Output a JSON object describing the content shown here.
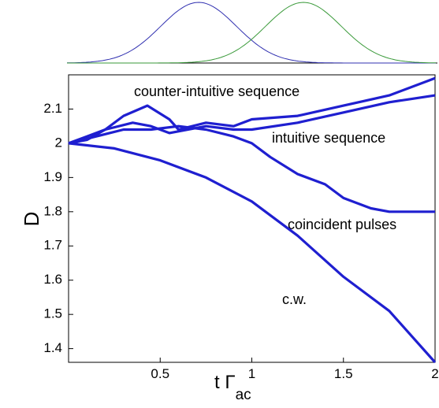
{
  "chart_data": {
    "type": "line",
    "ylabel": "D",
    "xlabel": {
      "main": "t Γ",
      "sub": "ac"
    },
    "annotations": [
      "counter-intuitive sequence",
      "intuitive sequence",
      "coincident pulses",
      "c.w."
    ],
    "xlim": [
      0,
      2
    ],
    "ylim": [
      1.36,
      2.2
    ],
    "xticks": [
      0.5,
      1,
      1.5,
      2
    ],
    "yticks": [
      1.4,
      1.5,
      1.6,
      1.7,
      1.8,
      1.9,
      2,
      2.1
    ],
    "grid": false,
    "color": "#1f1fd0",
    "series": [
      {
        "name": "counter-intuitive sequence",
        "x": [
          0,
          0.1,
          0.2,
          0.3,
          0.43,
          0.55,
          0.6,
          0.75,
          0.9,
          1.0,
          1.25,
          1.5,
          1.75,
          2.0
        ],
        "values": [
          2.0,
          2.01,
          2.04,
          2.08,
          2.11,
          2.07,
          2.04,
          2.06,
          2.05,
          2.07,
          2.08,
          2.11,
          2.14,
          2.19
        ]
      },
      {
        "name": "intuitive sequence",
        "x": [
          0,
          0.1,
          0.2,
          0.35,
          0.45,
          0.55,
          0.75,
          0.9,
          1.0,
          1.25,
          1.5,
          1.75,
          2.0
        ],
        "values": [
          2.0,
          2.02,
          2.04,
          2.06,
          2.05,
          2.03,
          2.05,
          2.04,
          2.04,
          2.06,
          2.09,
          2.12,
          2.14
        ]
      },
      {
        "name": "coincident pulses",
        "x": [
          0,
          0.15,
          0.3,
          0.45,
          0.6,
          0.75,
          0.9,
          1.0,
          1.1,
          1.25,
          1.4,
          1.5,
          1.65,
          1.75,
          2.0
        ],
        "values": [
          2.0,
          2.02,
          2.04,
          2.04,
          2.05,
          2.04,
          2.02,
          2.0,
          1.96,
          1.91,
          1.88,
          1.84,
          1.81,
          1.8,
          1.8
        ]
      },
      {
        "name": "c.w.",
        "x": [
          0,
          0.25,
          0.5,
          0.75,
          1.0,
          1.25,
          1.5,
          1.75,
          2.0
        ],
        "values": [
          2.0,
          1.985,
          1.95,
          1.9,
          1.83,
          1.73,
          1.61,
          1.51,
          1.36
        ]
      }
    ]
  }
}
